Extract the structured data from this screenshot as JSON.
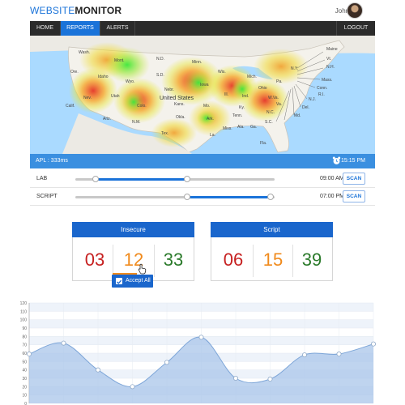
{
  "header": {
    "logo_part1": "WEBSITE",
    "logo_part2": "MONITOR",
    "user_name": "John Doe"
  },
  "nav": {
    "items": [
      {
        "label": "HOME"
      },
      {
        "label": "REPORTS",
        "active": true
      },
      {
        "label": "ALERTS"
      }
    ],
    "logout_label": "LOGOUT"
  },
  "map": {
    "country_label": "United States",
    "state_labels": [
      "Wash.",
      "Mont.",
      "N.D.",
      "Minn.",
      "Ore.",
      "Idaho",
      "Wyo.",
      "S.D.",
      "Wis.",
      "Mich.",
      "Nev.",
      "Utah",
      "Colo.",
      "Nebr.",
      "Iowa",
      "Ill.",
      "Ind.",
      "Ohio",
      "Pa.",
      "N.Y.",
      "Calif.",
      "Ariz.",
      "N.M.",
      "Kans.",
      "Mo.",
      "Ky.",
      "W.Va.",
      "Va.",
      "Okla.",
      "Ark.",
      "Tenn.",
      "N.C.",
      "Tex.",
      "La.",
      "Miss.",
      "Ala.",
      "Ga.",
      "S.C.",
      "Fla.",
      "Maine",
      "Vt.",
      "N.H.",
      "Mass.",
      "Conn.",
      "N.J.",
      "Del.",
      "Md.",
      "R.I."
    ]
  },
  "status_bar": {
    "apl": "APL : 333ms",
    "time": "15:15 PM"
  },
  "controls": [
    {
      "label": "LAB",
      "time": "09:00 AM",
      "scan_label": "SCAN",
      "range": [
        0.1,
        0.56
      ]
    },
    {
      "label": "SCRIPT",
      "time": "07:00 PM",
      "scan_label": "SCAN",
      "range": [
        0.56,
        0.98
      ]
    }
  ],
  "cards": [
    {
      "title": "Insecure",
      "values": [
        "03",
        "12",
        "33"
      ]
    },
    {
      "title": "Script",
      "values": [
        "06",
        "15",
        "39"
      ]
    }
  ],
  "accept_all_label": "Accept All",
  "colors": {
    "brand_blue": "#1a66cc",
    "red": "#c62020",
    "orange": "#f08a1c",
    "green": "#2a7a2a"
  },
  "chart_data": {
    "type": "area",
    "x": [
      0,
      1,
      2,
      3,
      4,
      5,
      6,
      7,
      8,
      9,
      10
    ],
    "values": [
      59,
      72,
      40,
      20,
      49,
      79,
      30,
      29,
      58,
      59,
      71
    ],
    "y_ticks": [
      "0",
      "10",
      "20",
      "30",
      "40",
      "50",
      "60",
      "70",
      "80",
      "90",
      "100",
      "110",
      "120"
    ],
    "ylim": [
      0,
      120
    ],
    "grid": true
  }
}
